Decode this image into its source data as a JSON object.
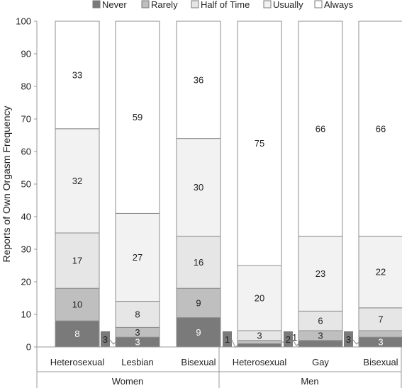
{
  "chart_data": {
    "type": "bar",
    "stacked": true,
    "ylabel": "Reports of Own Orgasm Frequency",
    "ylim": [
      0,
      100
    ],
    "yticks": [
      0,
      10,
      20,
      30,
      40,
      50,
      60,
      70,
      80,
      90,
      100
    ],
    "grid": false,
    "legend_position": "top",
    "groups": [
      {
        "label": "Women",
        "categories": [
          "Heterosexual",
          "Lesbian",
          "Bisexual"
        ]
      },
      {
        "label": "Men",
        "categories": [
          "Heterosexual",
          "Gay",
          "Bisexual"
        ]
      }
    ],
    "categories": [
      "Heterosexual",
      "Lesbian",
      "Bisexual",
      "Heterosexual",
      "Gay",
      "Bisexual"
    ],
    "series": [
      {
        "name": "Never",
        "color": "#7a7a7a",
        "label_color": "#ffffff",
        "values": [
          8,
          3,
          9,
          1,
          2,
          3
        ]
      },
      {
        "name": "Rarely",
        "color": "#bfbfbf",
        "label_color": "#222222",
        "values": [
          10,
          3,
          9,
          1,
          3,
          2
        ]
      },
      {
        "name": "Half of Time",
        "color": "#e6e6e6",
        "label_color": "#222222",
        "values": [
          17,
          8,
          16,
          3,
          6,
          7
        ]
      },
      {
        "name": "Usually",
        "color": "#f2f2f2",
        "label_color": "#222222",
        "values": [
          32,
          27,
          30,
          20,
          23,
          22
        ]
      },
      {
        "name": "Always",
        "color": "#ffffff",
        "label_color": "#222222",
        "values": [
          33,
          59,
          36,
          75,
          66,
          66
        ]
      }
    ]
  }
}
